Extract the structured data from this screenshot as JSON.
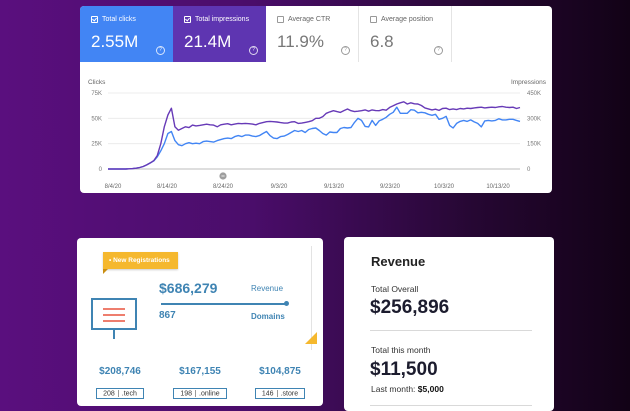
{
  "search_console": {
    "metrics": [
      {
        "label": "Total clicks",
        "value": "2.55M",
        "checked": true,
        "color": "#4285f4"
      },
      {
        "label": "Total impressions",
        "value": "21.4M",
        "checked": true,
        "color": "#5e35b1"
      },
      {
        "label": "Average CTR",
        "value": "11.9%",
        "checked": false
      },
      {
        "label": "Average position",
        "value": "6.8",
        "checked": false
      }
    ],
    "help_glyph": "?",
    "chart_data": {
      "type": "line",
      "left_axis_title": "Clicks",
      "right_axis_title": "Impressions",
      "left_ticks": [
        "75K",
        "50K",
        "25K",
        "0"
      ],
      "right_ticks": [
        "450K",
        "300K",
        "150K",
        "0"
      ],
      "left_ylim": [
        0,
        75000
      ],
      "right_ylim": [
        0,
        450000
      ],
      "x_tick_labels": [
        "8/4/20",
        "8/14/20",
        "8/24/20",
        "9/3/20",
        "9/13/20",
        "9/23/20",
        "10/3/20",
        "10/13/20"
      ],
      "annotation_marker": "8/24/20",
      "grid": true,
      "series": [
        {
          "color": "#4285f4",
          "axis": "left",
          "values": [
            0,
            0,
            0,
            0,
            0,
            0,
            200,
            400,
            800,
            1500,
            2500,
            4000,
            6000,
            8000,
            12000,
            18000,
            25000,
            35000,
            37000,
            28000,
            24000,
            23000,
            25000,
            26000,
            25000,
            25500,
            25000,
            27000,
            27500,
            27000,
            26500,
            28000,
            29000,
            30000,
            30500,
            30000,
            32000,
            33000,
            32000,
            33500,
            33500,
            32500,
            32000,
            33000,
            35000,
            37000,
            33000,
            30500,
            30000,
            32000,
            32500,
            34000,
            36000,
            38000,
            37000,
            38000,
            36000,
            39000,
            40000,
            40500,
            38000,
            35000,
            33500,
            36500,
            36000,
            36000,
            40000,
            41000,
            40500,
            41000,
            46000,
            50000,
            48000,
            42000,
            41500,
            48000,
            43000,
            47500,
            49000,
            51000,
            54000,
            56000,
            61000,
            55000,
            55000,
            55000,
            58500,
            58000,
            55500,
            56000,
            55500,
            54000,
            53000,
            54000,
            49000,
            50000,
            52000,
            43000,
            40500,
            45000,
            47000,
            48000,
            47000,
            48500,
            46500,
            45000,
            41500,
            47500,
            48000,
            47500,
            48000,
            49500,
            48500,
            48500,
            49000,
            49000,
            48000,
            47000
          ]
        },
        {
          "color": "#673ab7",
          "axis": "right",
          "values": [
            0,
            0,
            0,
            0,
            0,
            0,
            1200,
            2400,
            4800,
            9000,
            15000,
            24000,
            36000,
            50000,
            80000,
            150000,
            250000,
            320000,
            360000,
            250000,
            230000,
            240000,
            250000,
            245000,
            260000,
            255000,
            258000,
            262000,
            265000,
            262000,
            260000,
            250000,
            262000,
            265000,
            268000,
            262000,
            266000,
            270000,
            268000,
            270000,
            268000,
            266000,
            262000,
            270000,
            275000,
            280000,
            282000,
            280000,
            278000,
            275000,
            272000,
            272000,
            278000,
            280000,
            270000,
            272000,
            276000,
            280000,
            286000,
            300000,
            300000,
            310000,
            330000,
            338000,
            345000,
            340000,
            335000,
            346000,
            355000,
            345000,
            340000,
            342000,
            345000,
            350000,
            342000,
            350000,
            346000,
            345000,
            352000,
            348000,
            365000,
            374000,
            385000,
            392000,
            398000,
            385000,
            392000,
            386000,
            385000,
            376000,
            362000,
            356000,
            350000,
            354000,
            347000,
            358000,
            360000,
            352000,
            356000,
            352000,
            358000,
            356000,
            360000,
            358000,
            362000,
            364000,
            366000,
            362000,
            364000,
            366000,
            364000,
            368000,
            370000,
            366000,
            364000,
            366000,
            358000,
            364000
          ]
        }
      ]
    }
  },
  "registrations": {
    "badge": "• New Registrations",
    "total_value": "$686,279",
    "total_label": "Revenue",
    "domains_value": "867",
    "domains_label": "Domains",
    "colors": {
      "accent": "#3f84b3",
      "badge": "#f5b82e",
      "monitor_lines": "#e8533f"
    },
    "tlds": [
      {
        "revenue": "$208,746",
        "count": "208",
        "tld": ".tech"
      },
      {
        "revenue": "$167,155",
        "count": "198",
        "tld": ".online"
      },
      {
        "revenue": "$104,875",
        "count": "146",
        "tld": ".store"
      }
    ]
  },
  "revenue": {
    "title": "Revenue",
    "overall_label": "Total Overall",
    "overall_value": "$256,896",
    "month_label": "Total this month",
    "month_value": "$11,500",
    "last_month_label": "Last month:",
    "last_month_value": "$5,000"
  }
}
